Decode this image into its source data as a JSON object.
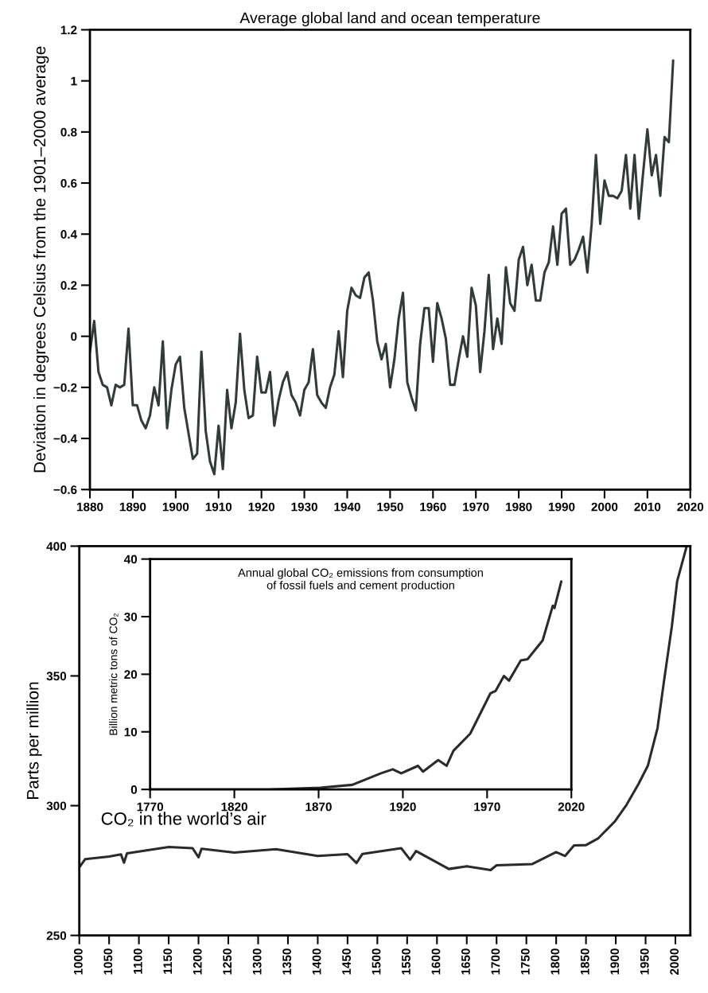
{
  "chart_data": [
    {
      "type": "line",
      "title": "Average global land and ocean temperature",
      "ylabel": "Deviation in degrees Celsius from the 1901–2000 average",
      "x": [
        1880,
        1881,
        1882,
        1883,
        1884,
        1885,
        1886,
        1887,
        1888,
        1889,
        1890,
        1891,
        1892,
        1893,
        1894,
        1895,
        1896,
        1897,
        1898,
        1899,
        1900,
        1901,
        1902,
        1903,
        1904,
        1905,
        1906,
        1907,
        1908,
        1909,
        1910,
        1911,
        1912,
        1913,
        1914,
        1915,
        1916,
        1917,
        1918,
        1919,
        1920,
        1921,
        1922,
        1923,
        1924,
        1925,
        1926,
        1927,
        1928,
        1929,
        1930,
        1931,
        1932,
        1933,
        1934,
        1935,
        1936,
        1937,
        1938,
        1939,
        1940,
        1941,
        1942,
        1943,
        1944,
        1945,
        1946,
        1947,
        1948,
        1949,
        1950,
        1951,
        1952,
        1953,
        1954,
        1955,
        1956,
        1957,
        1958,
        1959,
        1960,
        1961,
        1962,
        1963,
        1964,
        1965,
        1966,
        1967,
        1968,
        1969,
        1970,
        1971,
        1972,
        1973,
        1974,
        1975,
        1976,
        1977,
        1978,
        1979,
        1980,
        1981,
        1982,
        1983,
        1984,
        1985,
        1986,
        1987,
        1988,
        1989,
        1990,
        1991,
        1992,
        1993,
        1994,
        1995,
        1996,
        1997,
        1998,
        1999,
        2000,
        2001,
        2002,
        2003,
        2004,
        2005,
        2006,
        2007,
        2008,
        2009,
        2010,
        2011,
        2012,
        2013,
        2014,
        2015,
        2016
      ],
      "series": [
        {
          "color": "#333a3a",
          "values": [
            -0.06,
            0.06,
            -0.14,
            -0.19,
            -0.2,
            -0.27,
            -0.19,
            -0.2,
            -0.19,
            0.03,
            -0.27,
            -0.27,
            -0.33,
            -0.36,
            -0.31,
            -0.2,
            -0.27,
            -0.02,
            -0.36,
            -0.21,
            -0.11,
            -0.08,
            -0.28,
            -0.38,
            -0.48,
            -0.46,
            -0.06,
            -0.37,
            -0.49,
            -0.54,
            -0.35,
            -0.52,
            -0.21,
            -0.36,
            -0.26,
            0.01,
            -0.21,
            -0.32,
            -0.31,
            -0.08,
            -0.22,
            -0.22,
            -0.14,
            -0.35,
            -0.25,
            -0.18,
            -0.14,
            -0.23,
            -0.26,
            -0.31,
            -0.21,
            -0.18,
            -0.05,
            -0.23,
            -0.26,
            -0.28,
            -0.2,
            -0.15,
            0.02,
            -0.16,
            0.1,
            0.19,
            0.16,
            0.15,
            0.23,
            0.25,
            0.14,
            -0.02,
            -0.09,
            -0.03,
            -0.2,
            -0.09,
            0.07,
            0.17,
            -0.18,
            -0.24,
            -0.29,
            -0.03,
            0.11,
            0.11,
            -0.1,
            0.13,
            0.07,
            -0.01,
            -0.19,
            -0.19,
            -0.09,
            0.0,
            -0.08,
            0.19,
            0.12,
            -0.14,
            0.02,
            0.24,
            -0.05,
            0.07,
            -0.03,
            0.27,
            0.13,
            0.1,
            0.3,
            0.35,
            0.2,
            0.28,
            0.14,
            0.14,
            0.25,
            0.29,
            0.43,
            0.28,
            0.48,
            0.5,
            0.28,
            0.3,
            0.34,
            0.39,
            0.25,
            0.44,
            0.71,
            0.44,
            0.61,
            0.55,
            0.55,
            0.54,
            0.57,
            0.71,
            0.5,
            0.71,
            0.46,
            0.64,
            0.81,
            0.63,
            0.71,
            0.55,
            0.78,
            0.76,
            1.08
          ]
        }
      ],
      "xlim": [
        1880,
        2020
      ],
      "xticks": [
        1880,
        1890,
        1900,
        1910,
        1920,
        1930,
        1940,
        1950,
        1960,
        1970,
        1980,
        1990,
        2000,
        2010,
        2020
      ],
      "ylim": [
        -0.6,
        1.2
      ],
      "yticks": [
        {
          "value": -0.6,
          "label": "−0.6"
        },
        {
          "value": -0.4,
          "label": "−0.4"
        },
        {
          "value": -0.2,
          "label": "−0.2"
        },
        0,
        0.2,
        0.4,
        0.6,
        0.8,
        1,
        1.2
      ]
    },
    {
      "type": "line",
      "ylabel": "Parts per million",
      "x": [
        1000,
        1010,
        1050,
        1070,
        1075,
        1080,
        1150,
        1190,
        1200,
        1205,
        1260,
        1330,
        1400,
        1450,
        1465,
        1475,
        1540,
        1555,
        1565,
        1620,
        1650,
        1690,
        1700,
        1760,
        1800,
        1815,
        1830,
        1850,
        1870,
        1898,
        1918,
        1938,
        1954,
        1970,
        1981,
        1994,
        2003,
        2019
      ],
      "series": [
        {
          "color": "#2a2a2a",
          "values": [
            276.2,
            279.4,
            280.4,
            281.2,
            278.0,
            281.6,
            284.1,
            283.6,
            280.1,
            283.4,
            281.9,
            283.2,
            280.6,
            281.3,
            277.9,
            281.4,
            283.6,
            279.2,
            282.5,
            275.6,
            276.6,
            275.2,
            277.0,
            277.5,
            282.1,
            280.6,
            284.7,
            284.8,
            287.3,
            293.8,
            300.3,
            308.3,
            315.5,
            329.9,
            348.2,
            369.0,
            386.5,
            400.0
          ]
        }
      ],
      "xlim": [
        1000,
        2025
      ],
      "xticks": [
        1000,
        1050,
        1100,
        1150,
        1200,
        1250,
        1300,
        1350,
        1400,
        1450,
        1500,
        1550,
        1600,
        1650,
        1700,
        1750,
        1800,
        1850,
        1900,
        1950,
        2000
      ],
      "ylim": [
        250,
        400
      ],
      "yticks": [
        250,
        300,
        350,
        400
      ],
      "annotations": [
        "CO₂ in the world’s air"
      ]
    },
    {
      "type": "line",
      "title": "Annual global CO₂ emissions from consumption\nof fossil fuels and cement production",
      "ylabel": "Billion metric tons of CO₂",
      "x": [
        1770,
        1800,
        1840,
        1871,
        1890,
        1907,
        1914,
        1919,
        1929,
        1932,
        1941,
        1946,
        1950,
        1960,
        1972,
        1975,
        1980,
        1983,
        1990,
        1994,
        2003,
        2009,
        2010,
        2014
      ],
      "series": [
        {
          "color": "#2a2a2a",
          "values": [
            0,
            0,
            0,
            0.3,
            0.8,
            2.8,
            3.5,
            2.8,
            4.1,
            3.1,
            5.1,
            4.1,
            6.7,
            9.7,
            16.7,
            17.1,
            19.7,
            18.9,
            22.4,
            22.6,
            25.9,
            31.9,
            31.5,
            36.1
          ]
        }
      ],
      "xlim": [
        1770,
        2020
      ],
      "xticks": [
        1770,
        1820,
        1870,
        1920,
        1970,
        2020
      ],
      "ylim": [
        0,
        40
      ],
      "yticks": [
        0,
        10,
        20,
        30,
        40
      ]
    }
  ]
}
